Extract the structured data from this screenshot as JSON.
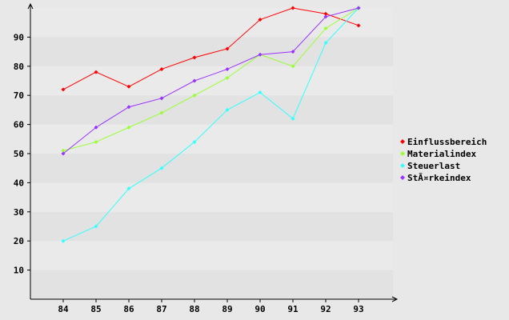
{
  "chart_data": {
    "type": "line",
    "title": "",
    "xlabel": "",
    "ylabel": "",
    "categories": [
      "84",
      "85",
      "86",
      "87",
      "88",
      "89",
      "90",
      "91",
      "92",
      "93"
    ],
    "yticks": [
      "10",
      "20",
      "30",
      "40",
      "50",
      "60",
      "70",
      "80",
      "90"
    ],
    "ylim": [
      0,
      100
    ],
    "grid": "horizontal bands",
    "legend_position": "right",
    "series": [
      {
        "name": "Einflussbereich",
        "color": "#ff0000",
        "values": [
          72,
          78,
          73,
          79,
          83,
          86,
          96,
          100,
          98,
          94
        ]
      },
      {
        "name": "Materialindex",
        "color": "#99ff33",
        "values": [
          51,
          54,
          59,
          64,
          70,
          76,
          84,
          80,
          93,
          100
        ]
      },
      {
        "name": "Steuerlast",
        "color": "#33ffff",
        "values": [
          20,
          25,
          38,
          45,
          54,
          65,
          71,
          62,
          88,
          100
        ]
      },
      {
        "name": "StÃ¤rkeindex",
        "color": "#9933ff",
        "values": [
          50,
          59,
          66,
          69,
          75,
          79,
          84,
          85,
          97,
          100
        ]
      }
    ]
  }
}
